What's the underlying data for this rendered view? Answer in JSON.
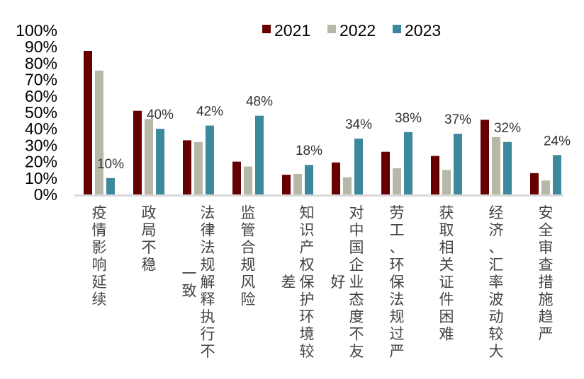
{
  "chart_data": {
    "type": "bar",
    "title": "",
    "xlabel": "",
    "ylabel": "",
    "ylim": [
      0,
      100
    ],
    "yticks": [
      "0%",
      "10%",
      "20%",
      "30%",
      "40%",
      "50%",
      "60%",
      "70%",
      "80%",
      "90%",
      "100%"
    ],
    "grid": false,
    "legend_position": "top-right",
    "categories": [
      "疫情影响延续",
      "政局不稳",
      "法律法规解释执行不一致",
      "监管合规风险",
      "知识产权保护环境较差",
      "对中国企业态度不友好",
      "劳工、环保法规过严",
      "获取相关证件困难",
      "经济、汇率波动较大",
      "安全审查措施趋严"
    ],
    "category_lines": [
      [
        "疫情影响延续"
      ],
      [
        "政局不稳"
      ],
      [
        "一致",
        "法律法规解释执行不"
      ],
      [
        "监管合规风险"
      ],
      [
        "差",
        "知识产权保护环境较"
      ],
      [
        "好",
        "对中国企业态度不友"
      ],
      [
        "劳工、环保法规过严"
      ],
      [
        "获取相关证件困难"
      ],
      [
        "经济、汇率波动较大"
      ],
      [
        "安全审查措施趋严"
      ]
    ],
    "series": [
      {
        "name": "2021",
        "color": "#660000",
        "values": [
          87.5,
          51,
          33,
          20,
          12,
          19.5,
          26,
          23.5,
          45.5,
          13
        ]
      },
      {
        "name": "2022",
        "color": "#B8B8A8",
        "values": [
          75.5,
          46,
          32,
          17,
          12.5,
          10.5,
          16,
          15,
          35,
          8.5
        ]
      },
      {
        "name": "2023",
        "color": "#3C889C",
        "values": [
          10,
          40,
          42,
          48,
          18,
          34,
          38,
          37,
          32,
          24
        ]
      }
    ],
    "data_labels": {
      "series": "2023",
      "texts": [
        "10%",
        "40%",
        "42%",
        "48%",
        "18%",
        "34%",
        "38%",
        "37%",
        "32%",
        "24%"
      ]
    },
    "axis_color": "#D9D9D9"
  }
}
